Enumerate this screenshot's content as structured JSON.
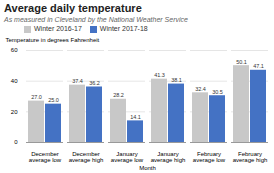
{
  "chart_data": {
    "type": "bar",
    "title": "Average daily temperature",
    "subtitle": "As measured in Cleveland by the National Weather Service",
    "xlabel": "Month",
    "ylabel": "Temperature in degrees Fahrenheit",
    "categories": [
      "December\naverage low",
      "December\naverage high",
      "January\naverage low",
      "January\naverage high",
      "February\naverage low",
      "February\naverage high"
    ],
    "series": [
      {
        "name": "Winter 2016-17",
        "color": "#c8c8c8",
        "values": [
          27.0,
          37.4,
          28.2,
          41.3,
          32.4,
          50.1
        ],
        "value_labels": [
          "27.0",
          "37.4",
          "28.2",
          "41.3",
          "32.4",
          "50.1"
        ]
      },
      {
        "name": "Winter 2017-18",
        "color": "#4472c4",
        "values": [
          25.0,
          36.2,
          14.1,
          38.1,
          30.5,
          47.1
        ],
        "value_labels": [
          "25.0",
          "36.2",
          "14.1",
          "38.1",
          "30.5",
          "47.1"
        ]
      }
    ],
    "ylim": [
      0,
      60
    ],
    "yticks": [
      0,
      20,
      40,
      60
    ],
    "grid": true,
    "legend": "upper left",
    "data_labels": true
  }
}
